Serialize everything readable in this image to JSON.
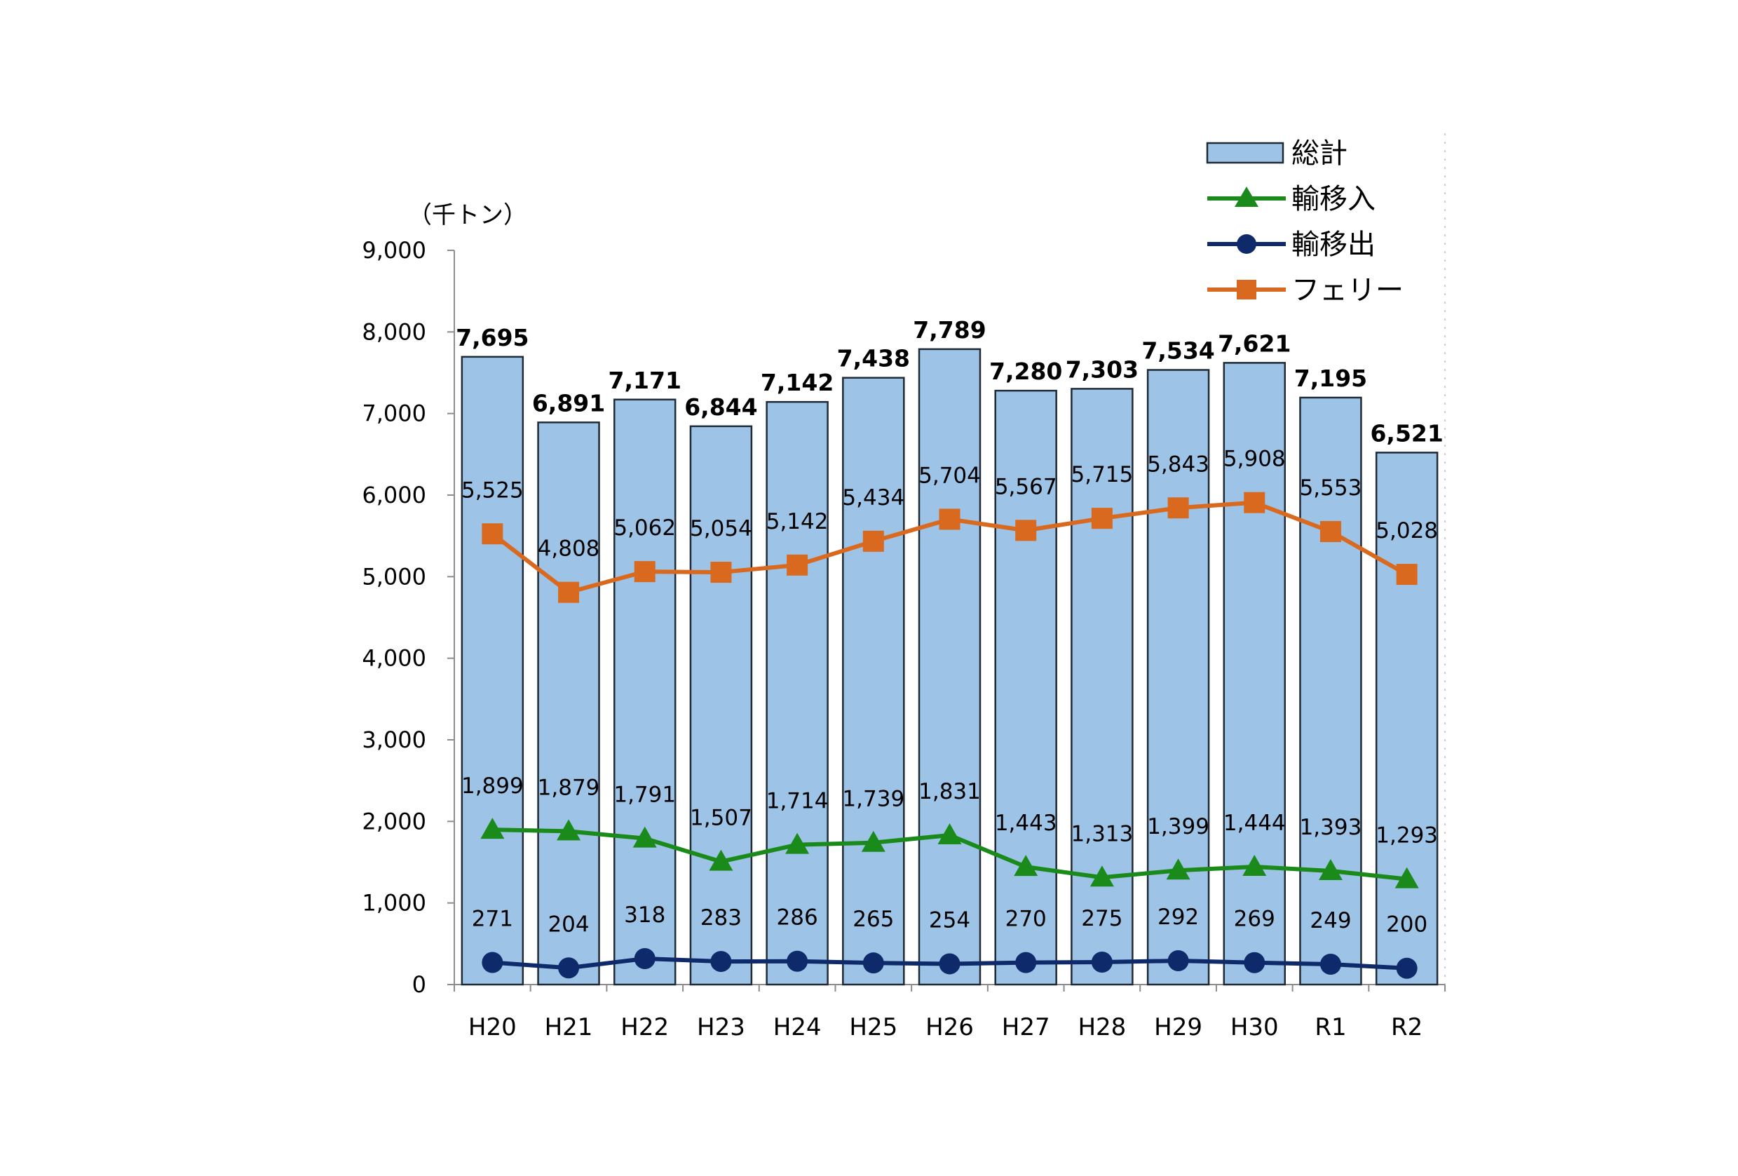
{
  "chart_data": {
    "type": "bar",
    "unit_label": "（千トン）",
    "categories": [
      "H20",
      "H21",
      "H22",
      "H23",
      "H24",
      "H25",
      "H26",
      "H27",
      "H28",
      "H29",
      "H30",
      "R1",
      "R2"
    ],
    "ylim": [
      0,
      9000
    ],
    "yticks": [
      "0",
      "1,000",
      "2,000",
      "3,000",
      "4,000",
      "5,000",
      "6,000",
      "7,000",
      "8,000",
      "9,000"
    ],
    "grid": false,
    "legend_position": "top-right",
    "series": [
      {
        "name": "総計",
        "kind": "bar",
        "color": "#9DC3E6",
        "values": [
          7695,
          6891,
          7171,
          6844,
          7142,
          7438,
          7789,
          7280,
          7303,
          7534,
          7621,
          7195,
          6521
        ],
        "labels": [
          "7,695",
          "6,891",
          "7,171",
          "6,844",
          "7,142",
          "7,438",
          "7,789",
          "7,280",
          "7,303",
          "7,534",
          "7,621",
          "7,195",
          "6,521"
        ]
      },
      {
        "name": "輸移入",
        "kind": "line",
        "marker": "triangle",
        "color": "#1A8A1A",
        "values": [
          1899,
          1879,
          1791,
          1507,
          1714,
          1739,
          1831,
          1443,
          1313,
          1399,
          1444,
          1393,
          1293
        ],
        "labels": [
          "1,899",
          "1,879",
          "1,791",
          "1,507",
          "1,714",
          "1,739",
          "1,831",
          "1,443",
          "1,313",
          "1,399",
          "1,444",
          "1,393",
          "1,293"
        ]
      },
      {
        "name": "輸移出",
        "kind": "line",
        "marker": "circle",
        "color": "#0F2A6B",
        "values": [
          271,
          204,
          318,
          283,
          286,
          265,
          254,
          270,
          275,
          292,
          269,
          249,
          200
        ],
        "labels": [
          "271",
          "204",
          "318",
          "283",
          "286",
          "265",
          "254",
          "270",
          "275",
          "292",
          "269",
          "249",
          "200"
        ]
      },
      {
        "name": "フェリー",
        "kind": "line",
        "marker": "square",
        "color": "#D9691E",
        "values": [
          5525,
          4808,
          5062,
          5054,
          5142,
          5434,
          5704,
          5567,
          5715,
          5843,
          5908,
          5553,
          5028
        ],
        "labels": [
          "5,525",
          "4,808",
          "5,062",
          "5,054",
          "5,142",
          "5,434",
          "5,704",
          "5,567",
          "5,715",
          "5,843",
          "5,908",
          "5,553",
          "5,028"
        ]
      }
    ]
  }
}
